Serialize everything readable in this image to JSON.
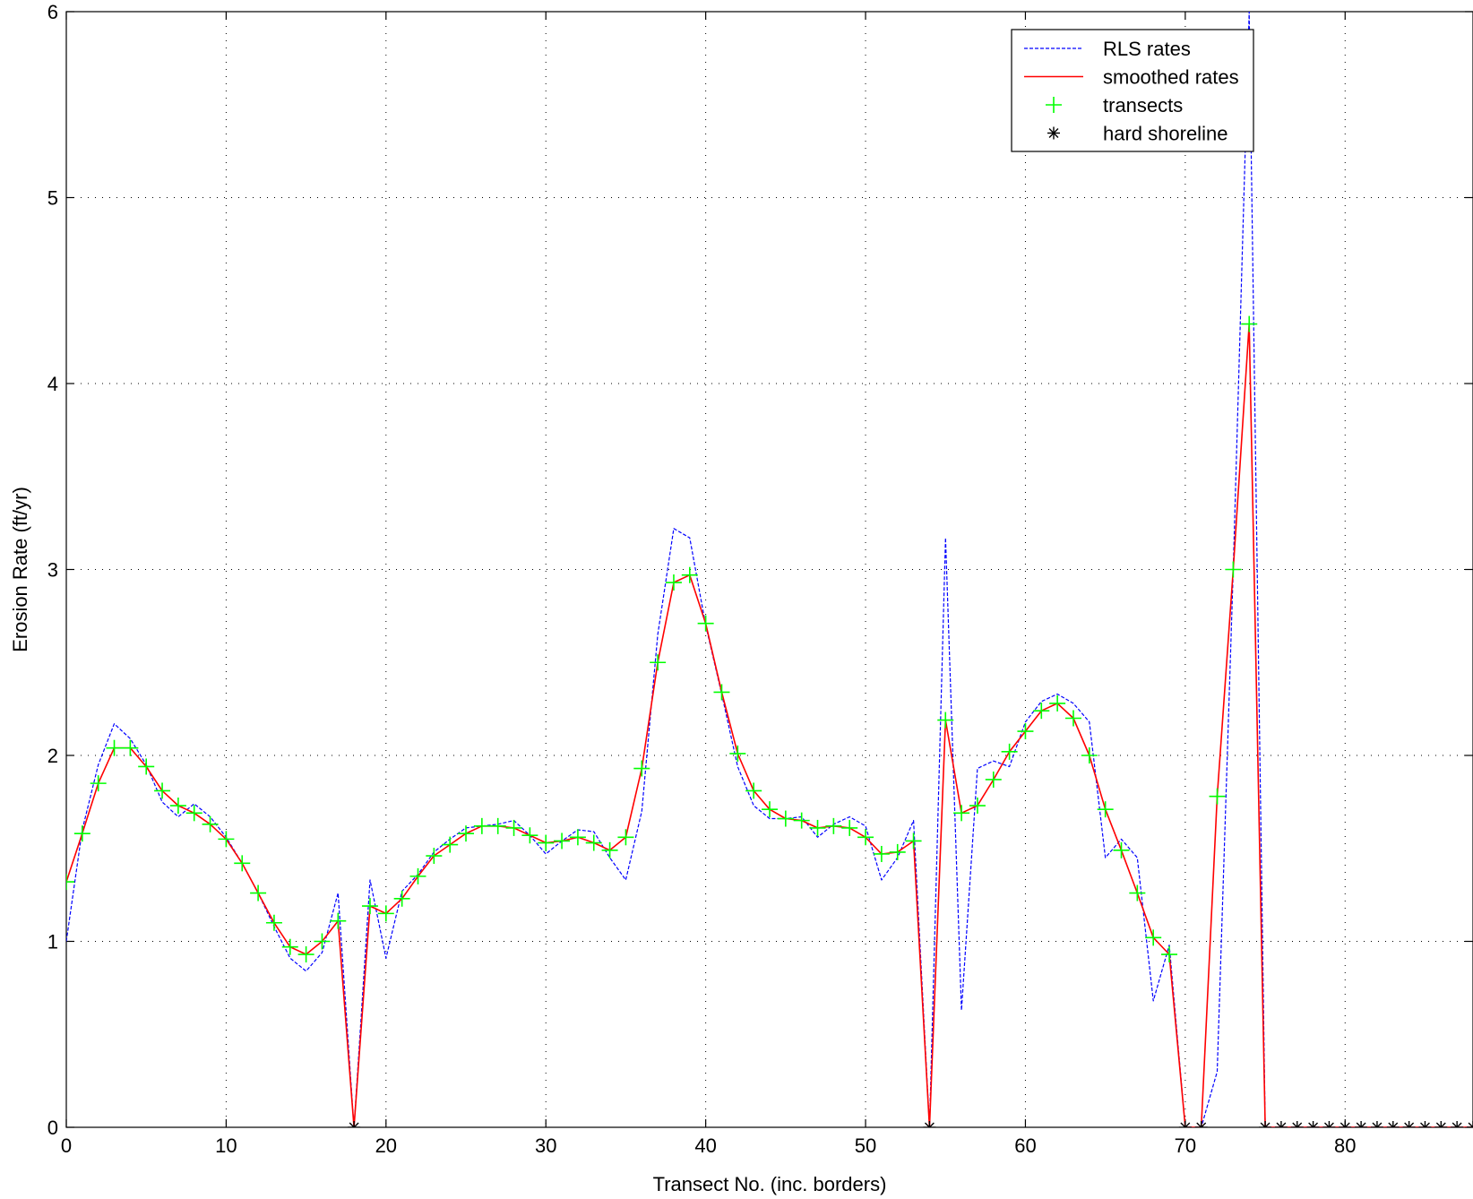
{
  "chart_data": {
    "type": "line",
    "title": "",
    "xlabel": "Transect No. (inc. borders)",
    "ylabel": "Erosion Rate (ft/yr)",
    "xlim": [
      0,
      88
    ],
    "ylim": [
      0,
      6
    ],
    "xticks": [
      0,
      10,
      20,
      30,
      40,
      50,
      60,
      70,
      80
    ],
    "yticks": [
      0,
      1,
      2,
      3,
      4,
      5,
      6
    ],
    "grid": true,
    "legend_position": "top-right",
    "series": [
      {
        "name": "RLS rates",
        "style": "dashed",
        "color": "#0000ff",
        "x": [
          0,
          1,
          2,
          3,
          4,
          5,
          6,
          7,
          8,
          9,
          10,
          11,
          12,
          13,
          14,
          15,
          16,
          17,
          18,
          19,
          20,
          21,
          22,
          23,
          24,
          25,
          26,
          27,
          28,
          29,
          30,
          31,
          32,
          33,
          34,
          35,
          36,
          37,
          38,
          39,
          40,
          41,
          42,
          43,
          44,
          45,
          46,
          47,
          48,
          49,
          50,
          51,
          52,
          53,
          54,
          55,
          56,
          57,
          58,
          59,
          60,
          61,
          62,
          63,
          64,
          65,
          66,
          67,
          68,
          69,
          70,
          71,
          72,
          73,
          74,
          75,
          76,
          77,
          78,
          79,
          80,
          81,
          82,
          83,
          84,
          85,
          86,
          87,
          88
        ],
        "y": [
          1.0,
          1.6,
          1.95,
          2.17,
          2.09,
          1.95,
          1.75,
          1.67,
          1.74,
          1.67,
          1.56,
          1.42,
          1.26,
          1.08,
          0.91,
          0.84,
          0.94,
          1.26,
          0.0,
          1.33,
          0.91,
          1.27,
          1.36,
          1.48,
          1.55,
          1.61,
          1.62,
          1.63,
          1.65,
          1.57,
          1.47,
          1.54,
          1.6,
          1.59,
          1.45,
          1.33,
          1.7,
          2.65,
          3.22,
          3.17,
          2.7,
          2.33,
          1.94,
          1.73,
          1.66,
          1.66,
          1.67,
          1.56,
          1.63,
          1.67,
          1.62,
          1.33,
          1.45,
          1.65,
          0.0,
          3.17,
          0.63,
          1.93,
          1.97,
          1.94,
          2.18,
          2.29,
          2.33,
          2.28,
          2.18,
          1.45,
          1.55,
          1.45,
          0.68,
          0.98,
          0.0,
          0.0,
          0.3,
          3.0,
          6.0,
          0.0,
          0.0,
          0.0,
          0.0,
          0.0,
          0.0,
          0.0,
          0.0,
          0.0,
          0.0,
          0.0,
          0.0,
          0.0,
          0.0
        ]
      },
      {
        "name": "smoothed rates",
        "style": "solid",
        "color": "#ff0000",
        "x": [
          0,
          1,
          2,
          3,
          4,
          5,
          6,
          7,
          8,
          9,
          10,
          11,
          12,
          13,
          14,
          15,
          16,
          17,
          18,
          19,
          20,
          21,
          22,
          23,
          24,
          25,
          26,
          27,
          28,
          29,
          30,
          31,
          32,
          33,
          34,
          35,
          36,
          37,
          38,
          39,
          40,
          41,
          42,
          43,
          44,
          45,
          46,
          47,
          48,
          49,
          50,
          51,
          52,
          53,
          54,
          55,
          56,
          57,
          58,
          59,
          60,
          61,
          62,
          63,
          64,
          65,
          66,
          67,
          68,
          69,
          70,
          71,
          72,
          73,
          74,
          75,
          76,
          77,
          78,
          79,
          80,
          81,
          82,
          83,
          84,
          85,
          86,
          87,
          88
        ],
        "y": [
          1.32,
          1.58,
          1.85,
          2.04,
          2.04,
          1.94,
          1.81,
          1.73,
          1.69,
          1.63,
          1.55,
          1.42,
          1.26,
          1.1,
          0.97,
          0.93,
          1.0,
          1.11,
          0.0,
          1.19,
          1.15,
          1.23,
          1.35,
          1.46,
          1.52,
          1.58,
          1.62,
          1.62,
          1.61,
          1.57,
          1.53,
          1.54,
          1.56,
          1.53,
          1.49,
          1.56,
          1.93,
          2.5,
          2.93,
          2.97,
          2.71,
          2.34,
          2.01,
          1.81,
          1.71,
          1.66,
          1.65,
          1.61,
          1.62,
          1.61,
          1.56,
          1.47,
          1.48,
          1.54,
          0.0,
          2.19,
          1.69,
          1.73,
          1.87,
          2.02,
          2.13,
          2.24,
          2.28,
          2.2,
          2.0,
          1.71,
          1.49,
          1.26,
          1.02,
          0.93,
          0.0,
          0.0,
          1.78,
          3.0,
          4.32,
          0.0,
          0.0,
          0.0,
          0.0,
          0.0,
          0.0,
          0.0,
          0.0,
          0.0,
          0.0,
          0.0,
          0.0,
          0.0,
          0.0
        ]
      },
      {
        "name": "transects",
        "style": "marker-plus",
        "color": "#00ff00",
        "x": [
          0,
          1,
          2,
          3,
          4,
          5,
          6,
          7,
          8,
          9,
          10,
          11,
          12,
          13,
          14,
          15,
          16,
          17,
          19,
          20,
          21,
          22,
          23,
          24,
          25,
          26,
          27,
          28,
          29,
          30,
          31,
          32,
          33,
          34,
          35,
          36,
          37,
          38,
          39,
          40,
          41,
          42,
          43,
          44,
          45,
          46,
          47,
          48,
          49,
          50,
          51,
          52,
          53,
          55,
          56,
          57,
          58,
          59,
          60,
          61,
          62,
          63,
          64,
          65,
          66,
          67,
          68,
          69,
          72,
          73,
          74
        ],
        "y": [
          1.32,
          1.58,
          1.85,
          2.04,
          2.04,
          1.94,
          1.81,
          1.73,
          1.69,
          1.63,
          1.55,
          1.42,
          1.26,
          1.1,
          0.97,
          0.93,
          1.0,
          1.11,
          1.19,
          1.15,
          1.23,
          1.35,
          1.46,
          1.52,
          1.58,
          1.62,
          1.62,
          1.61,
          1.57,
          1.53,
          1.54,
          1.56,
          1.53,
          1.49,
          1.56,
          1.93,
          2.5,
          2.93,
          2.97,
          2.71,
          2.34,
          2.01,
          1.81,
          1.71,
          1.66,
          1.65,
          1.61,
          1.62,
          1.61,
          1.56,
          1.47,
          1.48,
          1.54,
          2.19,
          1.69,
          1.73,
          1.87,
          2.02,
          2.13,
          2.24,
          2.28,
          2.2,
          2.0,
          1.71,
          1.49,
          1.26,
          1.02,
          0.93,
          1.78,
          3.0,
          4.32
        ]
      },
      {
        "name": "hard shoreline",
        "style": "marker-asterisk",
        "color": "#000000",
        "x": [
          18,
          54,
          70,
          71,
          75,
          76,
          77,
          78,
          79,
          80,
          81,
          82,
          83,
          84,
          85,
          86,
          87,
          88
        ],
        "y": [
          0,
          0,
          0,
          0,
          0,
          0,
          0,
          0,
          0,
          0,
          0,
          0,
          0,
          0,
          0,
          0,
          0,
          0
        ]
      }
    ]
  }
}
